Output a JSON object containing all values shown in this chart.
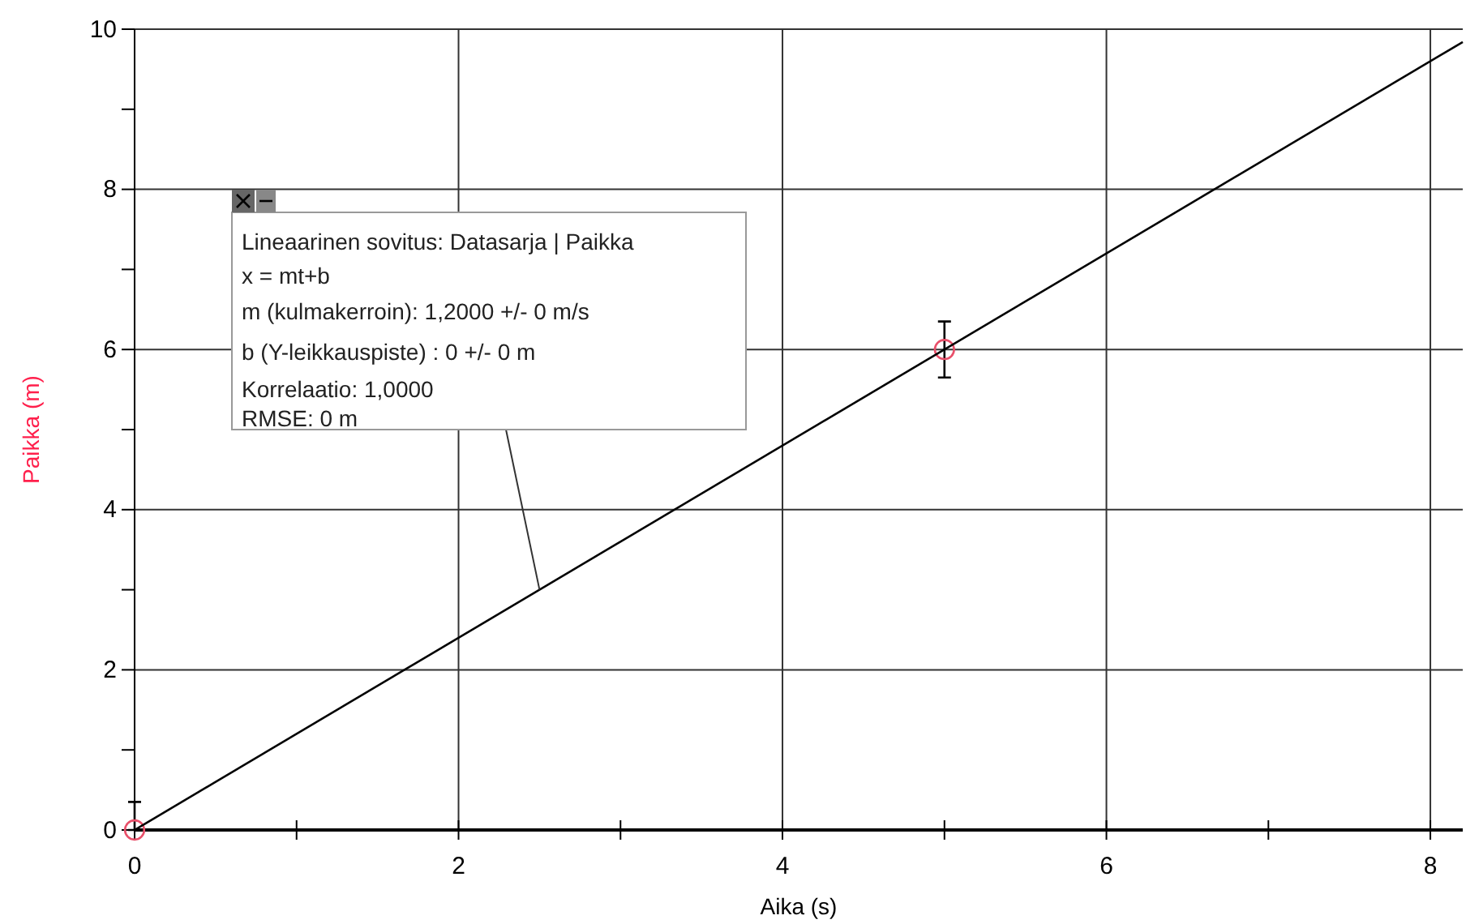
{
  "chart_data": {
    "type": "scatter",
    "xlabel": "Aika (s)",
    "ylabel": "Paikka (m)",
    "xlim": [
      0,
      8.2
    ],
    "ylim": [
      0,
      10
    ],
    "xticks": [
      0,
      {
        "value": 1,
        "label": null
      },
      2,
      {
        "value": 3,
        "label": null
      },
      4,
      {
        "value": 5,
        "label": null
      },
      6,
      {
        "value": 7,
        "label": null
      },
      8
    ],
    "yticks": [
      0,
      {
        "value": 1,
        "label": null
      },
      2,
      {
        "value": 3,
        "label": null
      },
      4,
      {
        "value": 5,
        "label": null
      },
      6,
      {
        "value": 7,
        "label": null
      },
      8,
      {
        "value": 9,
        "label": null
      },
      10
    ],
    "grid": true,
    "marker": "circle",
    "series": [
      {
        "color": "#e8506a",
        "x": [
          0,
          5
        ],
        "values": [
          0,
          6
        ],
        "errors": [
          [
            0,
            0.35
          ],
          0.35
        ]
      },
      {
        "type": "line",
        "color": "#000000",
        "x": [
          0,
          8.2
        ],
        "values": [
          0,
          9.84
        ],
        "marker": "none"
      }
    ],
    "annotations": [
      {
        "text": "Lineaarinen sovitus: Datasarja | Paikka\nx = mt+b\nm (kulmakerroin): 1,2000 +/- 0 m/s\nb (Y-leikkauspiste) : 0 +/- 0 m\nKorrelaatio: 1,0000\nRMSE: 0 m",
        "x": 2.5,
        "y": 3
      }
    ]
  }
}
